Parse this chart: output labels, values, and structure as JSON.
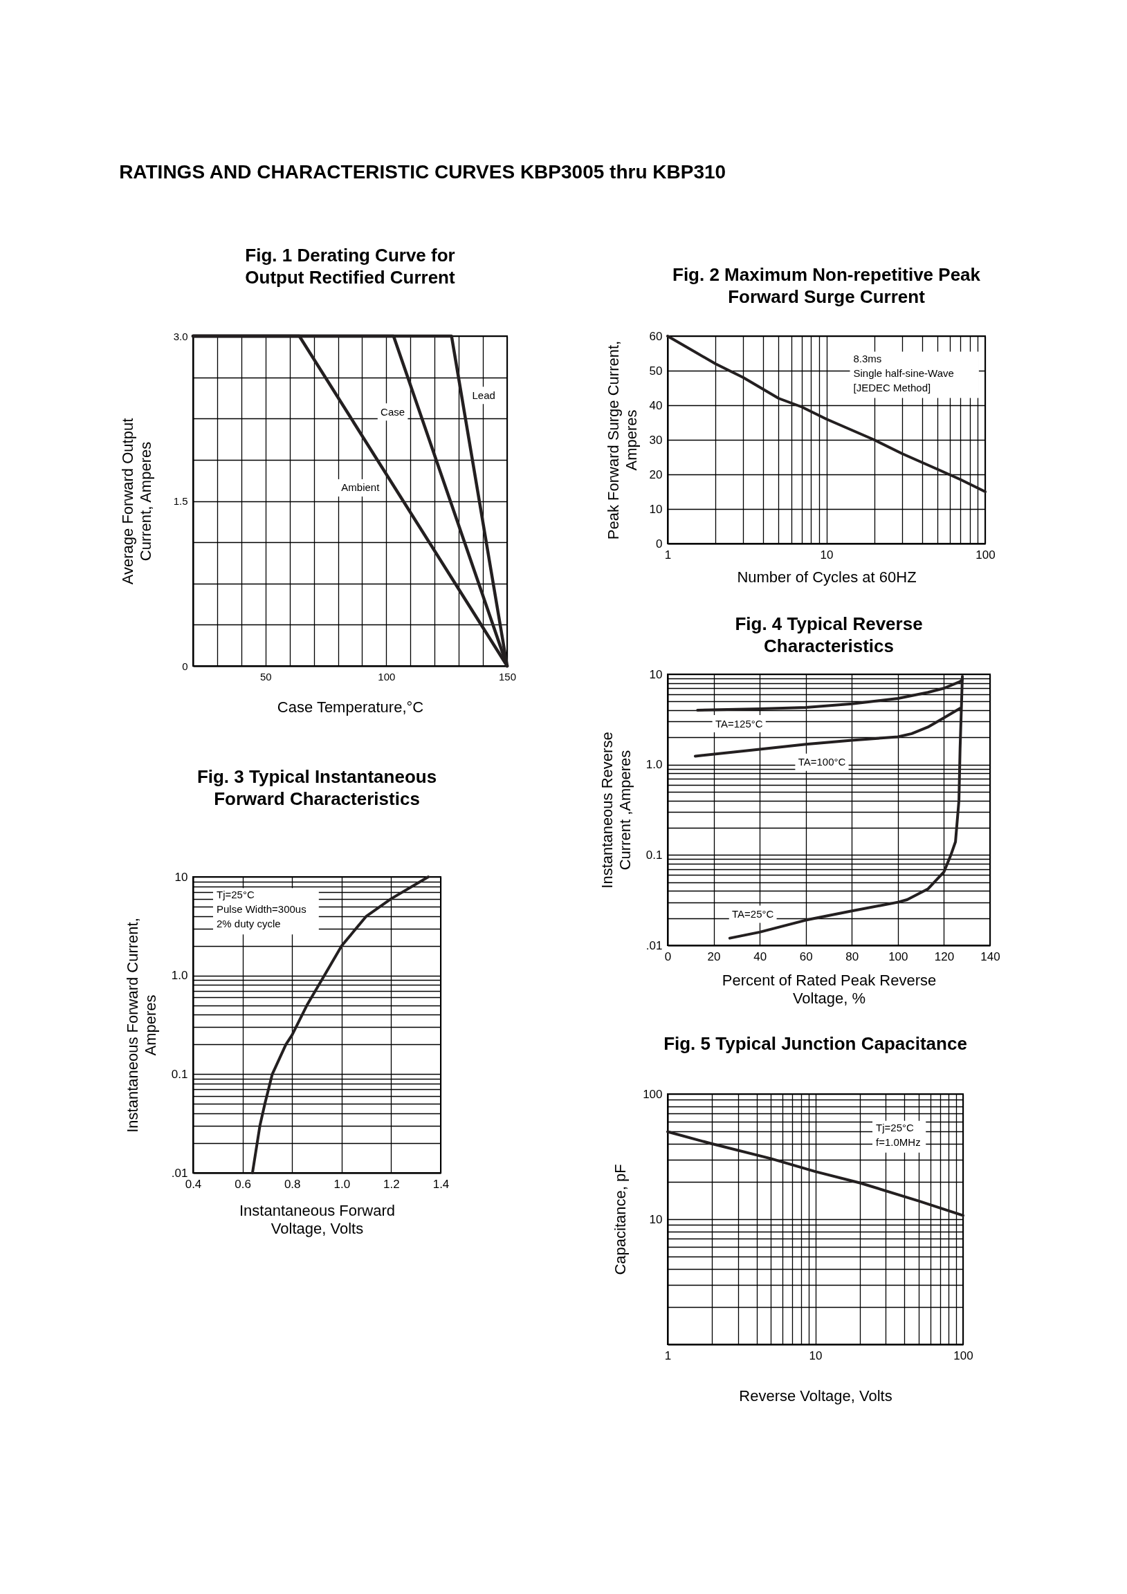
{
  "chart_data": [
    {
      "type": "other",
      "title": "RATINGS AND CHARACTERISTIC CURVES KBP3005 thru KBP310"
    },
    {
      "type": "line",
      "title": "Fig. 1 Derating Curve for\nOutput Rectified Current",
      "xlabel": "Case Temperature,°C",
      "ylabel": "Average Forward Output\nCurrent, Amperes",
      "series": [
        {
          "name": "Ambient",
          "color": "#231f20",
          "x": [
            20,
            64,
            150
          ],
          "values": [
            3,
            3,
            0
          ]
        },
        {
          "name": "Case",
          "color": "#231f20",
          "x": [
            20,
            103,
            150
          ],
          "values": [
            3,
            3,
            0
          ]
        },
        {
          "name": "Lead",
          "color": "#231f20",
          "x": [
            20,
            127,
            150
          ],
          "values": [
            3,
            3,
            0
          ]
        }
      ],
      "xlim": [
        20,
        150
      ],
      "ylim": [
        0,
        3
      ],
      "xticks": [
        {
          "value": 20,
          "label": null
        },
        {
          "value": 30,
          "label": null
        },
        {
          "value": 40,
          "label": null
        },
        50,
        {
          "value": 60,
          "label": null
        },
        {
          "value": 70,
          "label": null
        },
        {
          "value": 80,
          "label": null
        },
        {
          "value": 90,
          "label": null
        },
        100,
        {
          "value": 110,
          "label": null
        },
        {
          "value": 120,
          "label": null
        },
        {
          "value": 130,
          "label": null
        },
        {
          "value": 140,
          "label": null
        },
        150
      ],
      "yticks": [
        0,
        {
          "value": 0.375,
          "label": null
        },
        {
          "value": 0.75,
          "label": null
        },
        {
          "value": 1.125,
          "label": null
        },
        1.5,
        {
          "value": 1.875,
          "label": null
        },
        {
          "value": 2.25,
          "label": null
        },
        {
          "value": 2.625,
          "label": null
        },
        {
          "value": 3,
          "label": "3.0"
        }
      ],
      "grid": true
    },
    {
      "type": "line",
      "title": "Fig. 2 Maximum Non-repetitive Peak\nForward Surge Current",
      "xlabel": "Number of Cycles at 60HZ",
      "ylabel": "Peak Forward Surge Current,\nAmperes",
      "x": [
        1,
        2,
        3,
        5,
        7,
        10,
        20,
        30,
        50,
        70,
        100
      ],
      "series": [
        {
          "color": "#231f20",
          "values": [
            60,
            52,
            48,
            42,
            39.5,
            36,
            30,
            26,
            21.5,
            18.5,
            15
          ]
        }
      ],
      "xlim": [
        1,
        100
      ],
      "ylim": [
        0,
        60
      ],
      "xticks": [
        1,
        {
          "value": 2,
          "label": null
        },
        {
          "value": 3,
          "label": null
        },
        {
          "value": 4,
          "label": null
        },
        {
          "value": 5,
          "label": null
        },
        {
          "value": 6,
          "label": null
        },
        {
          "value": 7,
          "label": null
        },
        {
          "value": 8,
          "label": null
        },
        {
          "value": 9,
          "label": null
        },
        10,
        {
          "value": 20,
          "label": null
        },
        {
          "value": 30,
          "label": null
        },
        {
          "value": 40,
          "label": null
        },
        {
          "value": 50,
          "label": null
        },
        {
          "value": 60,
          "label": null
        },
        {
          "value": 70,
          "label": null
        },
        {
          "value": 80,
          "label": null
        },
        {
          "value": 90,
          "label": null
        },
        100
      ],
      "yticks": [
        0,
        10,
        20,
        30,
        40,
        50,
        60
      ],
      "log": "x",
      "grid": true,
      "annotations": [
        "8.3ms\nSingle half-sine-Wave\n[JEDEC Method]"
      ]
    },
    {
      "type": "line",
      "title": "Fig. 3 Typical Instantaneous\nForward Characteristics",
      "xlabel": "Instantaneous Forward\nVoltage, Volts",
      "ylabel": "Instantaneous Forward Current,\nAmperes",
      "x": [
        0.64,
        0.67,
        0.69,
        0.72,
        0.775,
        0.8,
        0.86,
        0.93,
        1.0,
        1.1,
        1.2,
        1.35
      ],
      "series": [
        {
          "color": "#231f20",
          "values": [
            0.01,
            0.03,
            0.05,
            0.1,
            0.2,
            0.25,
            0.5,
            1,
            2,
            4,
            6,
            10
          ]
        }
      ],
      "xlim": [
        0.4,
        1.4
      ],
      "ylim": [
        0.01,
        10
      ],
      "xticks": [
        0.4,
        0.6,
        0.8,
        {
          "value": 1,
          "label": "1.0"
        },
        1.2,
        1.4
      ],
      "yticks": [
        {
          "value": 0.01,
          "label": ".01"
        },
        {
          "value": 0.02,
          "label": null
        },
        {
          "value": 0.03,
          "label": null
        },
        {
          "value": 0.04,
          "label": null
        },
        {
          "value": 0.05,
          "label": null
        },
        {
          "value": 0.06,
          "label": null
        },
        {
          "value": 0.07,
          "label": null
        },
        {
          "value": 0.08,
          "label": null
        },
        {
          "value": 0.09,
          "label": null
        },
        0.1,
        {
          "value": 0.2,
          "label": null
        },
        {
          "value": 0.3,
          "label": null
        },
        {
          "value": 0.4,
          "label": null
        },
        {
          "value": 0.5,
          "label": null
        },
        {
          "value": 0.6,
          "label": null
        },
        {
          "value": 0.7,
          "label": null
        },
        {
          "value": 0.8,
          "label": null
        },
        {
          "value": 0.9,
          "label": null
        },
        {
          "value": 1,
          "label": "1.0"
        },
        {
          "value": 2,
          "label": null
        },
        {
          "value": 3,
          "label": null
        },
        {
          "value": 4,
          "label": null
        },
        {
          "value": 5,
          "label": null
        },
        {
          "value": 6,
          "label": null
        },
        {
          "value": 7,
          "label": null
        },
        {
          "value": 8,
          "label": null
        },
        {
          "value": 9,
          "label": null
        },
        10
      ],
      "log": "y",
      "grid": true,
      "annotations": [
        "Tj=25°C\nPulse Width=300us\n2% duty cycle"
      ]
    },
    {
      "type": "line",
      "title": "Fig. 4 Typical Reverse\nCharacteristics",
      "xlabel": "Percent of Rated Peak Reverse\nVoltage, %",
      "ylabel": "Instantaneous Reverse\nCurrent ,Amperes",
      "series": [
        {
          "name": "TA=125°C",
          "color": "#231f20",
          "x": [
            13,
            40,
            60,
            80,
            100,
            113,
            120,
            127,
            128
          ],
          "values": [
            4,
            4.15,
            4.3,
            4.7,
            5.4,
            6.3,
            7,
            8.3,
            8.7
          ]
        },
        {
          "name": "TA=100°C",
          "color": "#231f20",
          "x": [
            12,
            40,
            60,
            80,
            100,
            106,
            113,
            120,
            127
          ],
          "values": [
            1.24,
            1.48,
            1.68,
            1.86,
            2.03,
            2.2,
            2.6,
            3.3,
            4.2
          ]
        },
        {
          "name": "TA=25°C",
          "color": "#231f20",
          "x": [
            27,
            40,
            60,
            80,
            100,
            104,
            113,
            120,
            123,
            125,
            126.5,
            127,
            128
          ],
          "values": [
            0.012,
            0.014,
            0.019,
            0.024,
            0.03,
            0.032,
            0.042,
            0.065,
            0.1,
            0.14,
            0.4,
            1.5,
            9.5
          ]
        }
      ],
      "xlim": [
        0,
        140
      ],
      "ylim": [
        0.01,
        10
      ],
      "xticks": [
        0,
        20,
        40,
        60,
        80,
        100,
        120,
        140
      ],
      "yticks": [
        {
          "value": 0.01,
          "label": ".01"
        },
        {
          "value": 0.02,
          "label": null
        },
        {
          "value": 0.03,
          "label": null
        },
        {
          "value": 0.04,
          "label": null
        },
        {
          "value": 0.05,
          "label": null
        },
        {
          "value": 0.06,
          "label": null
        },
        {
          "value": 0.07,
          "label": null
        },
        {
          "value": 0.08,
          "label": null
        },
        {
          "value": 0.09,
          "label": null
        },
        0.1,
        {
          "value": 0.2,
          "label": null
        },
        {
          "value": 0.3,
          "label": null
        },
        {
          "value": 0.4,
          "label": null
        },
        {
          "value": 0.5,
          "label": null
        },
        {
          "value": 0.6,
          "label": null
        },
        {
          "value": 0.7,
          "label": null
        },
        {
          "value": 0.8,
          "label": null
        },
        {
          "value": 0.9,
          "label": null
        },
        {
          "value": 1,
          "label": "1.0"
        },
        {
          "value": 2,
          "label": null
        },
        {
          "value": 3,
          "label": null
        },
        {
          "value": 4,
          "label": null
        },
        {
          "value": 5,
          "label": null
        },
        {
          "value": 6,
          "label": null
        },
        {
          "value": 7,
          "label": null
        },
        {
          "value": 8,
          "label": null
        },
        {
          "value": 9,
          "label": null
        },
        10
      ],
      "log": "y",
      "grid": true
    },
    {
      "type": "line",
      "title": "Fig. 5 Typical Junction Capacitance",
      "xlabel": "Reverse Voltage, Volts",
      "ylabel": "Capacitance, pF",
      "x": [
        1,
        2,
        5,
        10,
        20,
        50,
        100
      ],
      "series": [
        {
          "color": "#231f20",
          "values": [
            50,
            40,
            30.5,
            24,
            19.5,
            14,
            10.7
          ]
        }
      ],
      "xlim": [
        1,
        100
      ],
      "ylim": [
        1,
        100
      ],
      "xticks": [
        1,
        {
          "value": 2,
          "label": null
        },
        {
          "value": 3,
          "label": null
        },
        {
          "value": 4,
          "label": null
        },
        {
          "value": 5,
          "label": null
        },
        {
          "value": 6,
          "label": null
        },
        {
          "value": 7,
          "label": null
        },
        {
          "value": 8,
          "label": null
        },
        {
          "value": 9,
          "label": null
        },
        10,
        {
          "value": 20,
          "label": null
        },
        {
          "value": 30,
          "label": null
        },
        {
          "value": 40,
          "label": null
        },
        {
          "value": 50,
          "label": null
        },
        {
          "value": 60,
          "label": null
        },
        {
          "value": 70,
          "label": null
        },
        {
          "value": 80,
          "label": null
        },
        {
          "value": 90,
          "label": null
        },
        100
      ],
      "yticks": [
        {
          "value": 1,
          "label": null
        },
        {
          "value": 2,
          "label": null
        },
        {
          "value": 3,
          "label": null
        },
        {
          "value": 4,
          "label": null
        },
        {
          "value": 5,
          "label": null
        },
        {
          "value": 6,
          "label": null
        },
        {
          "value": 7,
          "label": null
        },
        {
          "value": 8,
          "label": null
        },
        {
          "value": 9,
          "label": null
        },
        10,
        {
          "value": 20,
          "label": null
        },
        {
          "value": 30,
          "label": null
        },
        {
          "value": 40,
          "label": null
        },
        {
          "value": 50,
          "label": null
        },
        {
          "value": 60,
          "label": null
        },
        {
          "value": 70,
          "label": null
        },
        {
          "value": 80,
          "label": null
        },
        {
          "value": 90,
          "label": null
        },
        100
      ],
      "log": "xy",
      "grid": true,
      "annotations": [
        "Tj=25°C\nf=1.0MHz"
      ]
    }
  ]
}
